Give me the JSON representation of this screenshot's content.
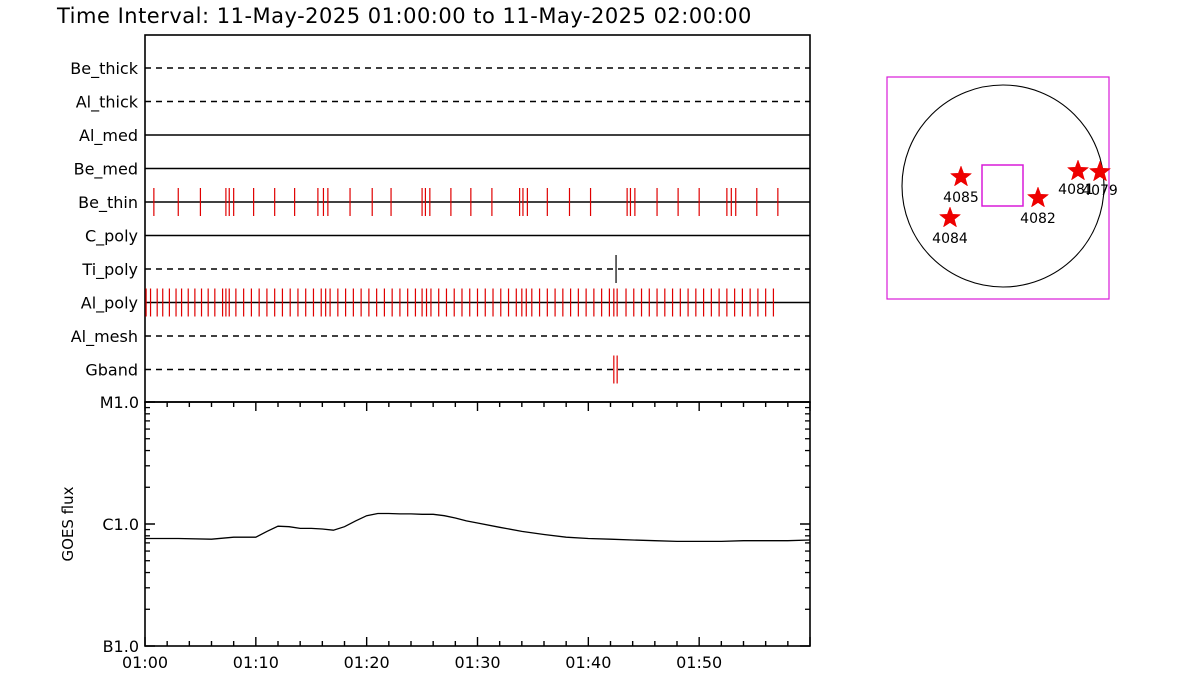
{
  "title": "Time Interval: 11-May-2025 01:00:00 to 11-May-2025 02:00:00",
  "colors": {
    "event": "#e00000",
    "ti_event": "#000000",
    "frame": "#000000",
    "fov_box": "#d81bd8",
    "star": "#ee0000"
  },
  "chart_data": [
    {
      "type": "timeline",
      "x_unit": "minutes after 01:00",
      "xlim": [
        0,
        60
      ],
      "channels": [
        {
          "name": "Be_thick",
          "style": "dashed",
          "events": []
        },
        {
          "name": "Al_thick",
          "style": "dashed",
          "events": []
        },
        {
          "name": "Al_med",
          "style": "solid",
          "events": []
        },
        {
          "name": "Be_med",
          "style": "solid",
          "events": []
        },
        {
          "name": "Be_thin",
          "style": "solid",
          "events": [
            0.8,
            3.0,
            5.0,
            7.3,
            7.6,
            8.0,
            9.8,
            11.7,
            13.5,
            15.6,
            16.1,
            16.5,
            18.5,
            20.5,
            22.2,
            25.0,
            25.3,
            25.7,
            27.6,
            29.4,
            31.3,
            33.8,
            34.1,
            34.5,
            36.3,
            38.3,
            40.2,
            43.5,
            43.8,
            44.2,
            46.2,
            48.1,
            50.0,
            52.5,
            52.9,
            53.3,
            55.2,
            57.1
          ]
        },
        {
          "name": "C_poly",
          "style": "solid",
          "events": []
        },
        {
          "name": "Ti_poly",
          "style": "dashed",
          "events": [
            42.5
          ],
          "color_key": "ti_event"
        },
        {
          "name": "Al_poly",
          "style": "solid",
          "events": [
            0.1,
            0.5,
            1.1,
            1.6,
            2.2,
            2.8,
            3.3,
            3.9,
            4.5,
            5.1,
            5.7,
            6.3,
            7.0,
            7.3,
            7.6,
            8.2,
            8.9,
            9.6,
            10.3,
            11.0,
            11.7,
            12.4,
            13.1,
            13.8,
            14.5,
            15.2,
            15.9,
            16.3,
            16.7,
            17.4,
            18.1,
            18.8,
            19.5,
            20.2,
            20.9,
            21.6,
            22.3,
            23.0,
            23.7,
            24.4,
            25.0,
            25.4,
            25.8,
            26.5,
            27.2,
            27.9,
            28.6,
            29.3,
            30.0,
            30.7,
            31.4,
            32.1,
            32.8,
            33.5,
            34.0,
            34.4,
            34.9,
            35.6,
            36.3,
            37.0,
            37.7,
            38.4,
            39.1,
            39.8,
            40.5,
            41.2,
            41.9,
            42.3,
            42.6,
            43.4,
            44.1,
            44.8,
            45.5,
            46.2,
            46.9,
            47.6,
            48.3,
            49.0,
            49.7,
            50.4,
            51.1,
            51.8,
            52.5,
            53.2,
            53.9,
            54.6,
            55.3,
            56.0,
            56.7
          ]
        },
        {
          "name": "Al_mesh",
          "style": "dashed",
          "events": []
        },
        {
          "name": "Gband",
          "style": "dashed",
          "events": [
            42.3,
            42.6
          ]
        }
      ]
    },
    {
      "type": "line",
      "ylabel": "GOES flux",
      "y_scale": "log",
      "ylim": [
        1e-07,
        1e-05
      ],
      "yticks": [
        {
          "value": 1e-07,
          "label": "B1.0"
        },
        {
          "value": 1e-06,
          "label": "C1.0"
        },
        {
          "value": 1e-05,
          "label": "M1.0"
        }
      ],
      "xlim": [
        0,
        60
      ],
      "xticks": [
        {
          "value": 0,
          "label": "01:00"
        },
        {
          "value": 10,
          "label": "01:10"
        },
        {
          "value": 20,
          "label": "01:20"
        },
        {
          "value": 30,
          "label": "01:30"
        },
        {
          "value": 40,
          "label": "01:40"
        },
        {
          "value": 50,
          "label": "01:50"
        }
      ],
      "x": [
        0,
        3,
        6,
        8,
        10,
        11,
        12,
        13,
        14,
        15,
        16,
        17,
        18,
        19,
        20,
        21,
        22,
        23,
        24,
        25,
        26,
        27,
        28,
        29,
        30,
        32,
        34,
        36,
        38,
        40,
        42,
        44,
        46,
        48,
        50,
        52,
        54,
        56,
        58,
        60
      ],
      "values": [
        7.6e-07,
        7.6e-07,
        7.5e-07,
        7.8e-07,
        7.8e-07,
        8.7e-07,
        9.6e-07,
        9.5e-07,
        9.2e-07,
        9.2e-07,
        9.1e-07,
        8.9e-07,
        9.5e-07,
        1.06e-06,
        1.17e-06,
        1.22e-06,
        1.22e-06,
        1.21e-06,
        1.21e-06,
        1.2e-06,
        1.2e-06,
        1.17e-06,
        1.12e-06,
        1.06e-06,
        1.02e-06,
        9.4e-07,
        8.7e-07,
        8.2e-07,
        7.8e-07,
        7.6e-07,
        7.5e-07,
        7.4e-07,
        7.3e-07,
        7.2e-07,
        7.2e-07,
        7.2e-07,
        7.3e-07,
        7.3e-07,
        7.3e-07,
        7.4e-07
      ]
    }
  ],
  "disk_map": {
    "active_regions": [
      {
        "label": "4085"
      },
      {
        "label": "4084"
      },
      {
        "label": "4082"
      },
      {
        "label": "4081"
      },
      {
        "label": "4079"
      }
    ]
  }
}
